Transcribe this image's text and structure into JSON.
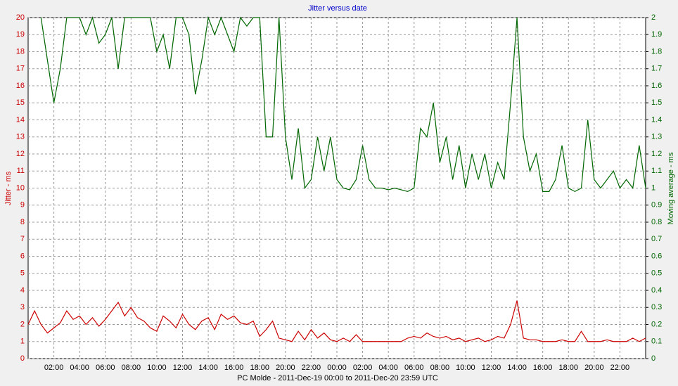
{
  "chart_data": {
    "type": "line",
    "title": "Jitter versus date",
    "x_label": "PC Molde  -  2011-Dec-19 00:00  to  2011-Dec-20 23:59 UTC",
    "y_label": "Jitter - ms",
    "y2_label": "Moving average - ms",
    "x": [
      0,
      0.5,
      1,
      1.5,
      2,
      2.5,
      3,
      3.5,
      4,
      4.5,
      5,
      5.5,
      6,
      6.5,
      7,
      7.5,
      8,
      8.5,
      9,
      9.5,
      10,
      10.5,
      11,
      11.5,
      12,
      12.5,
      13,
      13.5,
      14,
      14.5,
      15,
      15.5,
      16,
      16.5,
      17,
      17.5,
      18,
      18.5,
      19,
      19.5,
      20,
      20.5,
      21,
      21.5,
      22,
      22.5,
      23,
      23.5,
      24,
      24.5,
      25,
      25.5,
      26,
      26.5,
      27,
      27.5,
      28,
      28.5,
      29,
      29.5,
      30,
      30.5,
      31,
      31.5,
      32,
      32.5,
      33,
      33.5,
      34,
      34.5,
      35,
      35.5,
      36,
      36.5,
      37,
      37.5,
      38,
      38.5,
      39,
      39.5,
      40,
      40.5,
      41,
      41.5,
      42,
      42.5,
      43,
      43.5,
      44,
      44.5,
      45,
      45.5,
      46,
      46.5,
      47,
      47.5,
      48
    ],
    "xlim": [
      0,
      48
    ],
    "xticks": [
      {
        "value": 2,
        "label": "02:00"
      },
      {
        "value": 4,
        "label": "04:00"
      },
      {
        "value": 6,
        "label": "06:00"
      },
      {
        "value": 8,
        "label": "08:00"
      },
      {
        "value": 10,
        "label": "10:00"
      },
      {
        "value": 12,
        "label": "12:00"
      },
      {
        "value": 14,
        "label": "14:00"
      },
      {
        "value": 16,
        "label": "16:00"
      },
      {
        "value": 18,
        "label": "18:00"
      },
      {
        "value": 20,
        "label": "20:00"
      },
      {
        "value": 22,
        "label": "22:00"
      },
      {
        "value": 24,
        "label": "00:00"
      },
      {
        "value": 26,
        "label": "02:00"
      },
      {
        "value": 28,
        "label": "04:00"
      },
      {
        "value": 30,
        "label": "06:00"
      },
      {
        "value": 32,
        "label": "08:00"
      },
      {
        "value": 34,
        "label": "10:00"
      },
      {
        "value": 36,
        "label": "12:00"
      },
      {
        "value": 38,
        "label": "14:00"
      },
      {
        "value": 40,
        "label": "16:00"
      },
      {
        "value": 42,
        "label": "18:00"
      },
      {
        "value": 44,
        "label": "20:00"
      },
      {
        "value": 46,
        "label": "22:00"
      }
    ],
    "ylim": [
      0,
      20
    ],
    "yticks": [
      0,
      1,
      2,
      3,
      4,
      5,
      6,
      7,
      8,
      9,
      10,
      11,
      12,
      13,
      14,
      15,
      16,
      17,
      18,
      19,
      20
    ],
    "y2lim": [
      0,
      2
    ],
    "y2ticks": [
      0,
      0.1,
      0.2,
      0.3,
      0.4,
      0.5,
      0.6,
      0.7,
      0.8,
      0.9,
      1,
      1.1,
      1.2,
      1.3,
      1.4,
      1.5,
      1.6,
      1.7,
      1.8,
      1.9,
      2
    ],
    "grid": true,
    "series": [
      {
        "name": "Jitter",
        "color": "#cc0000",
        "values": [
          2,
          2.8,
          2,
          1.5,
          1.8,
          2.1,
          2.8,
          2.3,
          2.5,
          2,
          2.4,
          1.9,
          2.3,
          2.8,
          3.3,
          2.5,
          3,
          2.4,
          2.2,
          1.8,
          1.6,
          2.5,
          2.2,
          1.8,
          2.6,
          2,
          1.7,
          2.2,
          2.4,
          1.7,
          2.6,
          2.3,
          2.5,
          2.1,
          2,
          2.2,
          1.3,
          1.7,
          2.2,
          1.2,
          1.1,
          1,
          1.6,
          1.1,
          1.7,
          1.2,
          1.5,
          1.1,
          1,
          1.2,
          1,
          1.4,
          1,
          1,
          1,
          1,
          1,
          1,
          1,
          1.2,
          1.3,
          1.2,
          1.5,
          1.3,
          1.2,
          1.3,
          1.1,
          1.2,
          1,
          1.1,
          1.2,
          1,
          1.1,
          1.3,
          1.2,
          2,
          3.4,
          1.2,
          1.1,
          1.1,
          1,
          1,
          1,
          1.1,
          1,
          1,
          1.6,
          1,
          1,
          1,
          1.1,
          1,
          1,
          1,
          1.2,
          1,
          1.2
        ]
      },
      {
        "name": "Moving average",
        "color": "#006600",
        "axis": "y2",
        "values": [
          null,
          null,
          2,
          1.75,
          1.5,
          1.7,
          2,
          2,
          2,
          1.9,
          2,
          1.85,
          1.9,
          2,
          1.7,
          2,
          2,
          2,
          2,
          2,
          1.8,
          1.9,
          1.7,
          2,
          2,
          1.9,
          1.55,
          1.75,
          2,
          1.9,
          2,
          1.9,
          1.8,
          2,
          1.95,
          2,
          2,
          1.3,
          1.3,
          2,
          1.3,
          1.05,
          1.35,
          1,
          1.05,
          1.3,
          1.1,
          1.3,
          1.05,
          1,
          0.99,
          1.05,
          1.25,
          1.05,
          1,
          1,
          0.99,
          1,
          0.99,
          0.98,
          1,
          1.35,
          1.3,
          1.5,
          1.15,
          1.3,
          1.05,
          1.25,
          1,
          1.2,
          1.05,
          1.2,
          1,
          1.15,
          1.05,
          1.5,
          2,
          1.3,
          1.1,
          1.2,
          0.98,
          0.98,
          1.05,
          1.25,
          1,
          0.98,
          1,
          1.4,
          1.05,
          1,
          1.05,
          1.1,
          1,
          1.05,
          1,
          1.25,
          1
        ]
      }
    ]
  }
}
